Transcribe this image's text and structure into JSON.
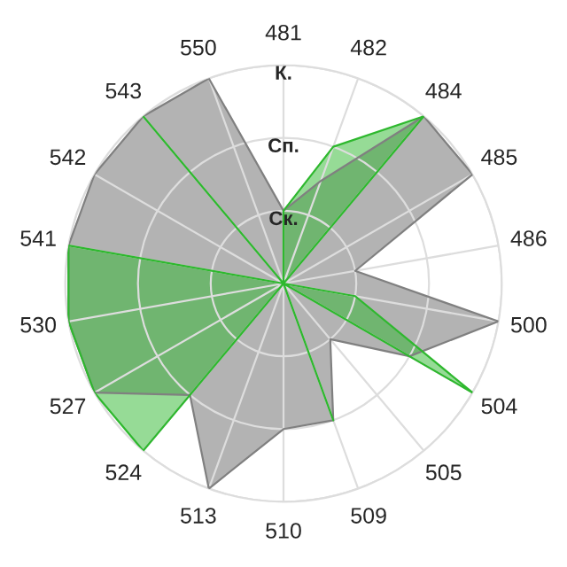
{
  "chart_data": {
    "type": "radar",
    "categories": [
      "481",
      "482",
      "484",
      "485",
      "486",
      "500",
      "504",
      "505",
      "509",
      "510",
      "513",
      "524",
      "527",
      "530",
      "541",
      "542",
      "543",
      "550"
    ],
    "ylim": [
      0,
      3
    ],
    "yticks": [
      {
        "value": 1,
        "label": "Ск."
      },
      {
        "value": 2,
        "label": "Сп."
      },
      {
        "value": 3,
        "label": "К."
      }
    ],
    "grid": true,
    "series": [
      {
        "color": "#b3b3b3",
        "values": [
          1,
          1.5,
          3,
          3,
          1,
          3,
          2,
          1,
          2,
          2,
          3,
          2,
          3,
          3,
          3,
          3,
          3,
          3
        ]
      },
      {
        "color": "#2eb82e",
        "values": [
          1,
          2,
          3,
          0,
          0,
          1,
          3,
          0,
          2,
          0,
          0,
          3,
          3,
          3,
          3,
          0,
          3,
          0
        ]
      }
    ]
  }
}
